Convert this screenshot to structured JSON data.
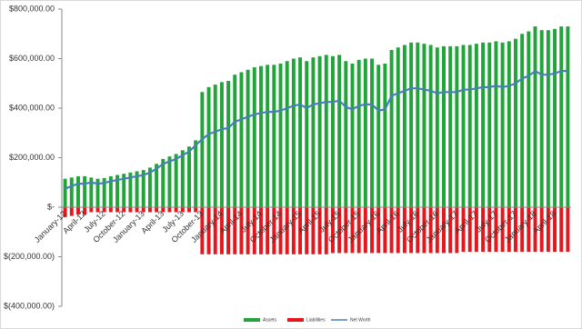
{
  "chart_data": {
    "type": "bar",
    "stacked": true,
    "categories": [
      "January-12",
      null,
      null,
      "April-12",
      null,
      null,
      "July-12",
      null,
      null,
      "October-12",
      null,
      null,
      "January-13",
      null,
      null,
      "April-13",
      null,
      null,
      "July-13",
      null,
      null,
      "October-13",
      null,
      null,
      "January-14",
      null,
      null,
      "April-14",
      null,
      null,
      "July-14",
      null,
      null,
      "October-14",
      null,
      null,
      "January-15",
      null,
      null,
      "April-15",
      null,
      null,
      "July-15",
      null,
      null,
      "October-15",
      null,
      null,
      "January-16",
      null,
      null,
      "April-16",
      null,
      null,
      "July-16",
      null,
      null,
      "October-16",
      null,
      null,
      "January-17",
      null,
      null,
      "April-17",
      null,
      null,
      "July-17",
      null,
      null,
      "October-17",
      null,
      null,
      "January-18",
      null,
      null,
      "April-18",
      null,
      null
    ],
    "series": [
      {
        "name": "Assets",
        "type": "bar",
        "color": "#21a53a",
        "values": [
          115000,
          120000,
          125000,
          125000,
          120000,
          115000,
          118000,
          125000,
          130000,
          135000,
          140000,
          145000,
          150000,
          160000,
          175000,
          195000,
          205000,
          215000,
          230000,
          245000,
          270000,
          465000,
          485000,
          495000,
          505000,
          510000,
          535000,
          545000,
          555000,
          565000,
          570000,
          575000,
          575000,
          580000,
          590000,
          600000,
          605000,
          590000,
          605000,
          610000,
          615000,
          610000,
          615000,
          590000,
          580000,
          595000,
          600000,
          600000,
          575000,
          580000,
          635000,
          645000,
          655000,
          665000,
          665000,
          660000,
          655000,
          645000,
          650000,
          650000,
          650000,
          655000,
          655000,
          660000,
          665000,
          665000,
          670000,
          665000,
          670000,
          680000,
          700000,
          710000,
          730000,
          715000,
          715000,
          720000,
          730000,
          730000
        ]
      },
      {
        "name": "Liabilities",
        "type": "bar",
        "color": "#e5161c",
        "values": [
          -40000,
          -35000,
          -30000,
          -30000,
          -20000,
          -20000,
          -20000,
          -20000,
          -20000,
          -20000,
          -20000,
          -20000,
          -20000,
          -20000,
          -20000,
          -20000,
          -20000,
          -20000,
          -20000,
          -20000,
          -20000,
          -190000,
          -190000,
          -190000,
          -190000,
          -190000,
          -190000,
          -190000,
          -190000,
          -190000,
          -190000,
          -190000,
          -190000,
          -190000,
          -190000,
          -190000,
          -190000,
          -190000,
          -190000,
          -190000,
          -190000,
          -185000,
          -185000,
          -185000,
          -185000,
          -185000,
          -185000,
          -185000,
          -185000,
          -185000,
          -185000,
          -185000,
          -185000,
          -185000,
          -185000,
          -185000,
          -185000,
          -185000,
          -185000,
          -185000,
          -185000,
          -180000,
          -180000,
          -180000,
          -180000,
          -180000,
          -180000,
          -180000,
          -180000,
          -180000,
          -180000,
          -180000,
          -180000,
          -180000,
          -180000,
          -180000,
          -180000,
          -180000
        ]
      },
      {
        "name": "Net Worth",
        "type": "line",
        "color": "#4a7ebb",
        "values": [
          75000,
          85000,
          95000,
          95000,
          100000,
          95000,
          98000,
          105000,
          110000,
          115000,
          120000,
          125000,
          130000,
          140000,
          155000,
          175000,
          185000,
          195000,
          210000,
          225000,
          250000,
          275000,
          295000,
          305000,
          315000,
          320000,
          345000,
          355000,
          365000,
          375000,
          380000,
          385000,
          385000,
          390000,
          400000,
          410000,
          415000,
          400000,
          415000,
          420000,
          425000,
          425000,
          430000,
          405000,
          395000,
          410000,
          415000,
          415000,
          390000,
          395000,
          450000,
          460000,
          470000,
          480000,
          480000,
          475000,
          470000,
          460000,
          465000,
          465000,
          465000,
          475000,
          475000,
          480000,
          485000,
          485000,
          490000,
          485000,
          490000,
          500000,
          520000,
          530000,
          550000,
          535000,
          535000,
          540000,
          550000,
          550000
        ]
      }
    ],
    "ylim": [
      -400000,
      800000
    ],
    "yticks": [
      {
        "value": -400000,
        "label": "$(400,000.00)"
      },
      {
        "value": -200000,
        "label": "$(200,000.00)"
      },
      {
        "value": 0,
        "label": "$-"
      },
      {
        "value": 200000,
        "label": "$200,000.00"
      },
      {
        "value": 400000,
        "label": "$400,000.00"
      },
      {
        "value": 600000,
        "label": "$600,000.00"
      },
      {
        "value": 800000,
        "label": "$800,000.00"
      }
    ],
    "grid": false,
    "legend": "bottom"
  }
}
